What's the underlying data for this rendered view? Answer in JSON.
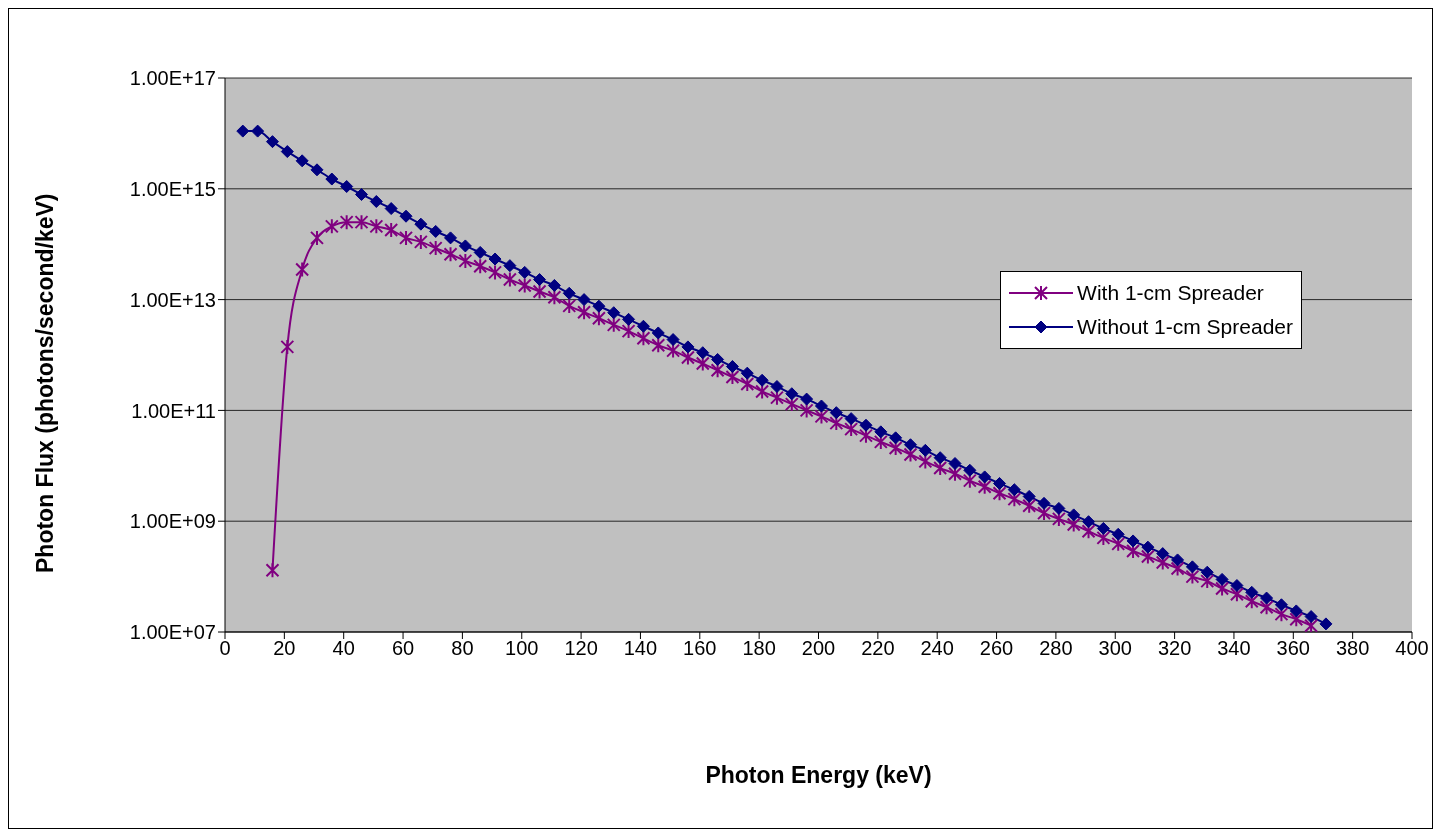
{
  "chart_data": {
    "type": "line",
    "xlabel": "Photon Energy (keV)",
    "ylabel": "Photon Flux (photons/second/keV)",
    "x": [
      6,
      11,
      16,
      21,
      26,
      31,
      36,
      41,
      46,
      51,
      56,
      61,
      66,
      71,
      76,
      81,
      86,
      91,
      96,
      101,
      106,
      111,
      116,
      121,
      126,
      131,
      136,
      141,
      146,
      151,
      156,
      161,
      166,
      171,
      176,
      181,
      186,
      191,
      196,
      201,
      206,
      211,
      216,
      221,
      226,
      231,
      236,
      241,
      246,
      251,
      256,
      261,
      266,
      271,
      276,
      281,
      286,
      291,
      296,
      301,
      306,
      311,
      316,
      321,
      326,
      331,
      336,
      341,
      346,
      351,
      356,
      361,
      366,
      371
    ],
    "series": [
      {
        "name": "With 1-cm Spreader",
        "color": "#800080",
        "marker": "cross",
        "values": [
          null,
          null,
          130000000.0,
          1400000000000.0,
          35000000000000.0,
          130000000000000.0,
          210000000000000.0,
          250000000000000.0,
          250000000000000.0,
          210000000000000.0,
          180000000000000.0,
          130000000000000.0,
          110000000000000.0,
          85000000000000.0,
          66000000000000.0,
          50000000000000.0,
          40000000000000.0,
          31000000000000.0,
          23000000000000.0,
          18000000000000.0,
          14000000000000.0,
          11000000000000.0,
          7700000000000.0,
          5900000000000.0,
          4600000000000.0,
          3500000000000.0,
          2700000000000.0,
          2000000000000.0,
          1500000000000.0,
          1200000000000.0,
          900000000000.0,
          700000000000.0,
          530000000000.0,
          400000000000.0,
          300000000000.0,
          220000000000.0,
          170000000000.0,
          130000000000.0,
          100000000000.0,
          78000000000.0,
          59000000000.0,
          46000000000.0,
          35000000000.0,
          27000000000.0,
          21000000000.0,
          16000000000.0,
          12000000000.0,
          9100000000.0,
          7200000000.0,
          5400000000.0,
          4200000000.0,
          3200000000.0,
          2500000000.0,
          1900000000.0,
          1400000000.0,
          1100000000.0,
          870000000.0,
          660000000.0,
          500000000.0,
          390000000.0,
          290000000.0,
          230000000.0,
          180000000.0,
          140000000.0,
          100000000.0,
          83000000.0,
          61000000.0,
          48000000.0,
          36000000.0,
          28000000.0,
          21000000.0,
          17000000.0,
          13000000.0,
          null
        ]
      },
      {
        "name": "Without 1-cm Spreader",
        "color": "#000080",
        "marker": "diamond",
        "values": [
          1.1e+16,
          1.1e+16,
          7100000000000000.0,
          4700000000000000.0,
          3200000000000000.0,
          2200000000000000.0,
          1500000000000000.0,
          1100000000000000.0,
          790000000000000.0,
          590000000000000.0,
          440000000000000.0,
          320000000000000.0,
          230000000000000.0,
          170000000000000.0,
          130000000000000.0,
          93000000000000.0,
          71000000000000.0,
          54000000000000.0,
          41000000000000.0,
          31000000000000.0,
          23000000000000.0,
          18000000000000.0,
          13000000000000.0,
          10000000000000.0,
          7600000000000.0,
          5800000000000.0,
          4400000000000.0,
          3300000000000.0,
          2500000000000.0,
          1900000000000.0,
          1400000000000.0,
          1100000000000.0,
          830000000000.0,
          620000000000.0,
          470000000000.0,
          350000000000.0,
          270000000000.0,
          200000000000.0,
          160000000000.0,
          120000000000.0,
          91000000000.0,
          71000000000.0,
          54000000000.0,
          41000000000.0,
          32000000000.0,
          24000000000.0,
          19000000000.0,
          14000000000.0,
          11000000000.0,
          8300000000.0,
          6300000000.0,
          4800000000.0,
          3700000000.0,
          2800000000.0,
          2100000000.0,
          1700000000.0,
          1300000000.0,
          980000000.0,
          740000000.0,
          580000000.0,
          440000000.0,
          340000000.0,
          260000000.0,
          200000000.0,
          150000000.0,
          120000000.0,
          89000000.0,
          69000000.0,
          52000000.0,
          41000000.0,
          31000000.0,
          24000000.0,
          19000000.0,
          14000000.0
        ]
      }
    ],
    "xlim": [
      0,
      400
    ],
    "xticks": [
      0,
      20,
      40,
      60,
      80,
      100,
      120,
      140,
      160,
      180,
      200,
      220,
      240,
      260,
      280,
      300,
      320,
      340,
      360,
      380,
      400
    ],
    "ylim": [
      10000000.0,
      1e+17
    ],
    "yticks": [
      {
        "value": 10000000.0,
        "label": "1.00E+07"
      },
      {
        "value": 1000000000.0,
        "label": "1.00E+09"
      },
      {
        "value": 100000000000.0,
        "label": "1.00E+11"
      },
      {
        "value": 10000000000000.0,
        "label": "1.00E+13"
      },
      {
        "value": 1000000000000000.0,
        "label": "1.00E+15"
      },
      {
        "value": 1e+17,
        "label": "1.00E+17"
      }
    ],
    "log": "y",
    "grid": "y",
    "legend": "right",
    "line_style": "solid"
  }
}
